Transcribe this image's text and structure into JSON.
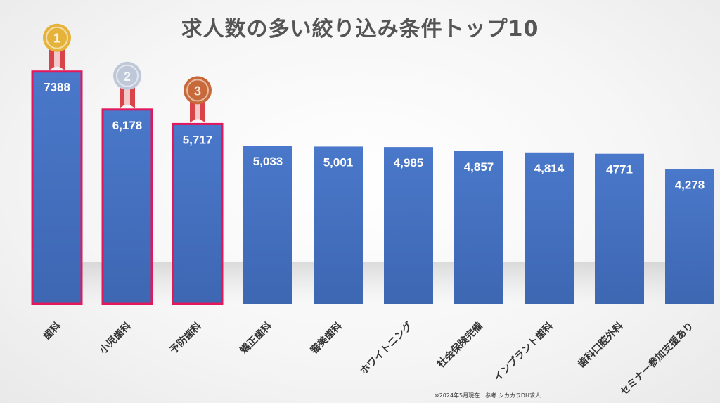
{
  "chart_data": {
    "type": "bar",
    "title": "求人数の多い絞り込み条件トップ10",
    "categories": [
      "歯科",
      "小児歯科",
      "予防歯科",
      "矯正歯科",
      "審美歯科",
      "ホワイトニング",
      "社会保険完備",
      "インプラント歯科",
      "歯科口腔外科",
      "セミナー参加支援あり"
    ],
    "values": [
      7388,
      6178,
      5717,
      5033,
      5001,
      4985,
      4857,
      4814,
      4771,
      4278
    ],
    "value_labels": [
      "7388",
      "6,178",
      "5,717",
      "5,033",
      "5,001",
      "4,985",
      "4,857",
      "4,814",
      "4771",
      "4,278"
    ],
    "ylim": [
      0,
      8500
    ],
    "xlabel": "",
    "ylabel": "",
    "grid": false,
    "bar_color": "#4472C4",
    "highlight_color": "#E2185B",
    "highlight_count": 3,
    "medals": [
      {
        "rank": "1",
        "name": "gold-medal-icon",
        "color": "#E6B33A"
      },
      {
        "rank": "2",
        "name": "silver-medal-icon",
        "color": "#BFC8D8"
      },
      {
        "rank": "3",
        "name": "bronze-medal-icon",
        "color": "#C8693A"
      }
    ]
  },
  "footnote": "※2024年5月現在　参考:シカカラDH求人"
}
